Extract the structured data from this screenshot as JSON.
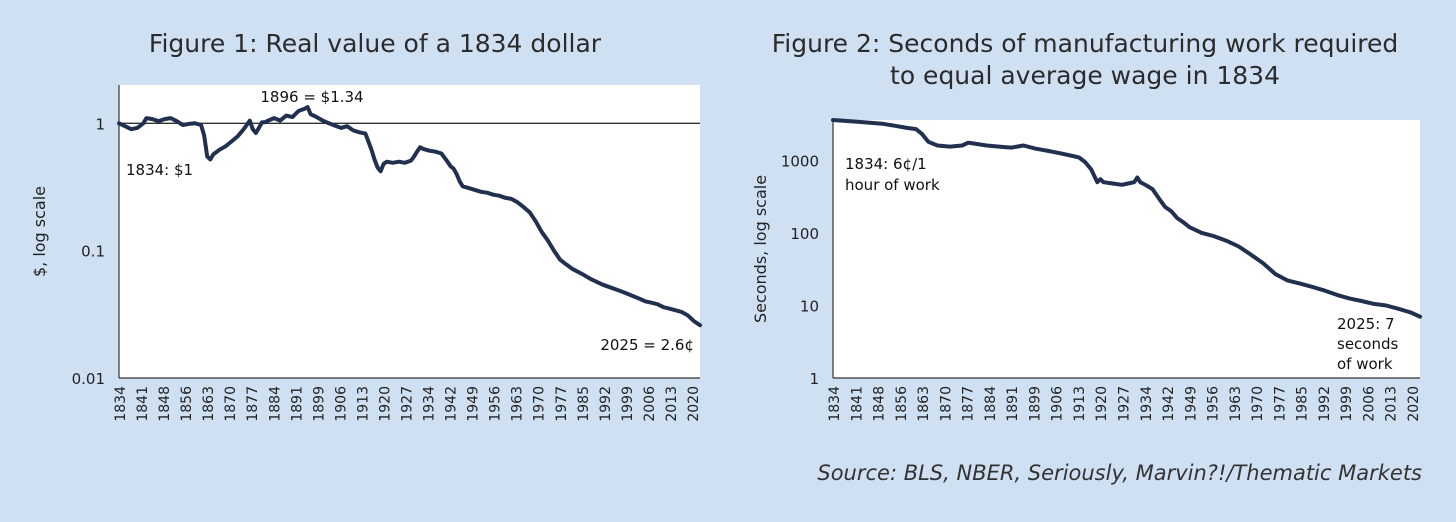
{
  "source": "Source: BLS, NBER, Seriously, Marvin?!/Thematic Markets",
  "chart_data": [
    {
      "type": "line",
      "title": "Figure 1: Real value of a 1834 dollar",
      "ylabel": "$, log scale",
      "y_scale": "log",
      "ylim": [
        0.01,
        2
      ],
      "y_ticks": [
        {
          "value": 0.01,
          "label": "0.01"
        },
        {
          "value": 0.1,
          "label": "0.1"
        },
        {
          "value": 1,
          "label": "1"
        }
      ],
      "x_ticks": [
        "1834",
        "1841",
        "1848",
        "1856",
        "1863",
        "1870",
        "1877",
        "1884",
        "1891",
        "1899",
        "1906",
        "1913",
        "1920",
        "1927",
        "1934",
        "1942",
        "1949",
        "1956",
        "1963",
        "1970",
        "1977",
        "1985",
        "1992",
        "1999",
        "2006",
        "2013",
        "2020"
      ],
      "xlim": [
        1834,
        2025
      ],
      "reference_line": 1,
      "color": "#22304f",
      "annotations": [
        {
          "text": "1896 = $1.34",
          "x": 1896,
          "y": 1.34
        },
        {
          "text": "1834: $1",
          "x": 1834,
          "y": 1
        },
        {
          "text": "2025 = 2.6¢",
          "x": 2025,
          "y": 0.026
        }
      ],
      "series": [
        {
          "x": [
            1834,
            1836,
            1838,
            1840,
            1842,
            1843,
            1845,
            1847,
            1849,
            1851,
            1853,
            1855,
            1857,
            1859,
            1861,
            1862,
            1863,
            1864,
            1865,
            1867,
            1869,
            1871,
            1873,
            1875,
            1877,
            1878,
            1879,
            1880,
            1881,
            1882,
            1883,
            1885,
            1887,
            1889,
            1891,
            1893,
            1895,
            1896,
            1897,
            1899,
            1901,
            1903,
            1905,
            1907,
            1909,
            1911,
            1913,
            1915,
            1916,
            1917,
            1918,
            1919,
            1920,
            1921,
            1922,
            1924,
            1926,
            1928,
            1930,
            1931,
            1932,
            1933,
            1934,
            1936,
            1938,
            1940,
            1942,
            1943,
            1944,
            1945,
            1946,
            1947,
            1949,
            1951,
            1953,
            1955,
            1957,
            1959,
            1961,
            1963,
            1965,
            1967,
            1969,
            1971,
            1973,
            1975,
            1977,
            1979,
            1981,
            1983,
            1985,
            1987,
            1989,
            1991,
            1993,
            1995,
            1997,
            1999,
            2001,
            2003,
            2005,
            2007,
            2009,
            2011,
            2013,
            2015,
            2017,
            2019,
            2021,
            2023,
            2025
          ],
          "y": [
            1.0,
            0.95,
            0.9,
            0.92,
            1.0,
            1.1,
            1.08,
            1.04,
            1.08,
            1.1,
            1.04,
            0.97,
            0.99,
            1.0,
            0.97,
            0.8,
            0.55,
            0.52,
            0.57,
            0.62,
            0.66,
            0.72,
            0.79,
            0.9,
            1.05,
            0.9,
            0.84,
            0.92,
            1.02,
            1.02,
            1.05,
            1.1,
            1.05,
            1.15,
            1.12,
            1.25,
            1.3,
            1.34,
            1.18,
            1.12,
            1.05,
            1.0,
            0.96,
            0.92,
            0.95,
            0.88,
            0.85,
            0.83,
            0.72,
            0.62,
            0.52,
            0.45,
            0.42,
            0.48,
            0.5,
            0.49,
            0.5,
            0.49,
            0.51,
            0.55,
            0.6,
            0.65,
            0.63,
            0.61,
            0.6,
            0.58,
            0.5,
            0.46,
            0.44,
            0.4,
            0.35,
            0.32,
            0.31,
            0.3,
            0.29,
            0.285,
            0.275,
            0.27,
            0.26,
            0.255,
            0.24,
            0.22,
            0.2,
            0.17,
            0.14,
            0.12,
            0.1,
            0.085,
            0.078,
            0.072,
            0.068,
            0.064,
            0.06,
            0.057,
            0.054,
            0.052,
            0.05,
            0.048,
            0.046,
            0.044,
            0.042,
            0.04,
            0.039,
            0.038,
            0.036,
            0.035,
            0.034,
            0.033,
            0.031,
            0.028,
            0.026
          ]
        }
      ]
    },
    {
      "type": "line",
      "title": "Figure 2: Seconds of manufacturing work required to equal average wage in 1834",
      "ylabel": "Seconds, log scale",
      "y_scale": "log",
      "ylim": [
        1,
        3600
      ],
      "y_ticks": [
        {
          "value": 1,
          "label": "1"
        },
        {
          "value": 10,
          "label": "10"
        },
        {
          "value": 100,
          "label": "100"
        },
        {
          "value": 1000,
          "label": "1000"
        }
      ],
      "x_ticks": [
        "1834",
        "1841",
        "1848",
        "1856",
        "1863",
        "1870",
        "1877",
        "1884",
        "1891",
        "1899",
        "1906",
        "1913",
        "1920",
        "1927",
        "1934",
        "1942",
        "1949",
        "1956",
        "1963",
        "1970",
        "1977",
        "1985",
        "1992",
        "1999",
        "2006",
        "2013",
        "2020"
      ],
      "xlim": [
        1834,
        2025
      ],
      "color": "#22304f",
      "annotations": [
        {
          "lines": [
            "1834: 6¢/1",
            "hour of work"
          ],
          "x": 1834,
          "y": 3600
        },
        {
          "lines": [
            "2025: 7",
            "seconds",
            "of work"
          ],
          "x": 2025,
          "y": 7
        }
      ],
      "series": [
        {
          "x": [
            1834,
            1838,
            1842,
            1846,
            1850,
            1854,
            1858,
            1861,
            1863,
            1865,
            1868,
            1872,
            1876,
            1878,
            1880,
            1884,
            1888,
            1892,
            1896,
            1900,
            1904,
            1908,
            1912,
            1914,
            1916,
            1918,
            1920,
            1921,
            1922,
            1925,
            1928,
            1930,
            1932,
            1933,
            1934,
            1936,
            1938,
            1940,
            1942,
            1944,
            1946,
            1948,
            1950,
            1954,
            1958,
            1962,
            1966,
            1970,
            1974,
            1978,
            1982,
            1986,
            1990,
            1994,
            1998,
            2002,
            2006,
            2010,
            2014,
            2018,
            2022,
            2025
          ],
          "y": [
            3600,
            3500,
            3400,
            3300,
            3200,
            3000,
            2800,
            2700,
            2300,
            1800,
            1600,
            1550,
            1600,
            1750,
            1700,
            1600,
            1550,
            1500,
            1600,
            1450,
            1350,
            1250,
            1150,
            1100,
            950,
            750,
            500,
            550,
            500,
            480,
            460,
            480,
            500,
            580,
            500,
            450,
            400,
            300,
            230,
            200,
            160,
            140,
            120,
            100,
            90,
            78,
            65,
            50,
            38,
            27,
            22,
            20,
            18,
            16,
            14,
            12.5,
            11.5,
            10.5,
            10,
            9,
            8,
            7
          ]
        }
      ]
    }
  ]
}
